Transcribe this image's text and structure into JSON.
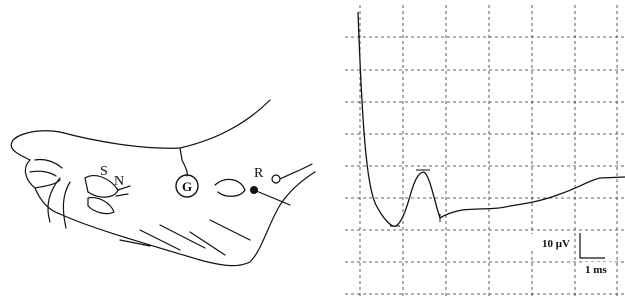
{
  "foot_labels": {
    "stimulus": "S",
    "nerve": "N",
    "ground": "G",
    "recording": "R"
  },
  "scale_bar": {
    "amplitude": "10 μV",
    "time": "1 ms"
  }
}
